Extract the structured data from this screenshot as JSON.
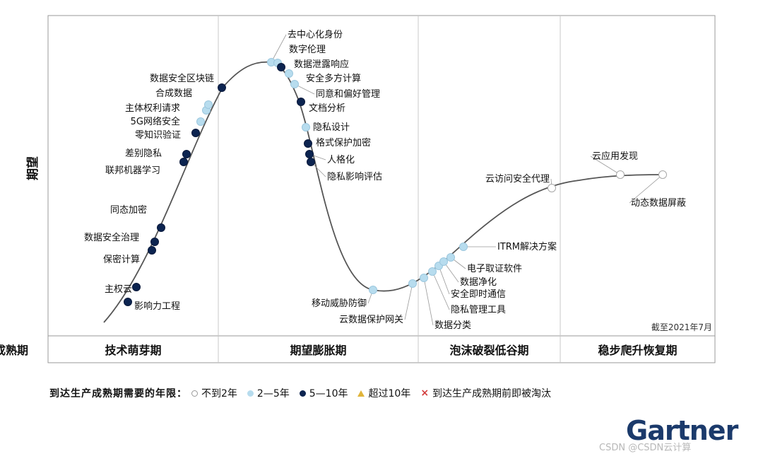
{
  "chart_data": {
    "type": "scatter",
    "ylabel": "期望",
    "note": "截至2021年7月",
    "phases": [
      "技术萌芽期",
      "期望膨胀期",
      "泡沫破裂低谷期",
      "稳步爬升恢复期",
      "生产成熟期"
    ],
    "legend": {
      "title": "到达生产成熟期需要的年限：",
      "items": [
        {
          "key": "white",
          "label": "不到2年"
        },
        {
          "key": "light",
          "label": "2—5年"
        },
        {
          "key": "dark",
          "label": "5—10年"
        },
        {
          "key": "tri",
          "label": "超过10年"
        },
        {
          "key": "cross",
          "label": "到达生产成熟期前即被淘汰"
        }
      ]
    },
    "colors": {
      "white": "#ffffff",
      "light": "#b7dcee",
      "dark": "#0c2450"
    },
    "technologies": [
      {
        "name": "影响力工程",
        "category": "dark"
      },
      {
        "name": "主权云",
        "category": "dark"
      },
      {
        "name": "保密计算",
        "category": "dark"
      },
      {
        "name": "数据安全治理",
        "category": "dark"
      },
      {
        "name": "同态加密",
        "category": "dark"
      },
      {
        "name": "联邦机器学习",
        "category": "dark"
      },
      {
        "name": "差别隐私",
        "category": "dark"
      },
      {
        "name": "零知识验证",
        "category": "dark"
      },
      {
        "name": "5G网络安全",
        "category": "light"
      },
      {
        "name": "主体权利请求",
        "category": "light"
      },
      {
        "name": "合成数据",
        "category": "light"
      },
      {
        "name": "数据安全区块链",
        "category": "dark"
      },
      {
        "name": "去中心化身份",
        "category": "light"
      },
      {
        "name": "数字伦理",
        "category": "light"
      },
      {
        "name": "数据泄露响应",
        "category": "dark"
      },
      {
        "name": "安全多方计算",
        "category": "light"
      },
      {
        "name": "同意和偏好管理",
        "category": "light"
      },
      {
        "name": "文档分析",
        "category": "dark"
      },
      {
        "name": "隐私设计",
        "category": "light"
      },
      {
        "name": "格式保护加密",
        "category": "dark"
      },
      {
        "name": "人格化",
        "category": "dark"
      },
      {
        "name": "隐私影响评估",
        "category": "dark"
      },
      {
        "name": "移动威胁防御",
        "category": "light"
      },
      {
        "name": "云数据保护网关",
        "category": "light"
      },
      {
        "name": "数据分类",
        "category": "light"
      },
      {
        "name": "隐私管理工具",
        "category": "light"
      },
      {
        "name": "安全即时通信",
        "category": "light"
      },
      {
        "name": "数据净化",
        "category": "light"
      },
      {
        "name": "电子取证软件",
        "category": "light"
      },
      {
        "name": "ITRM解决方案",
        "category": "light"
      },
      {
        "name": "云访问安全代理",
        "category": "white"
      },
      {
        "name": "云应用发现",
        "category": "white"
      },
      {
        "name": "动态数据屏蔽",
        "category": "white"
      }
    ]
  },
  "brand": "Gartner",
  "watermark": "CSDN @CSDN云计算"
}
